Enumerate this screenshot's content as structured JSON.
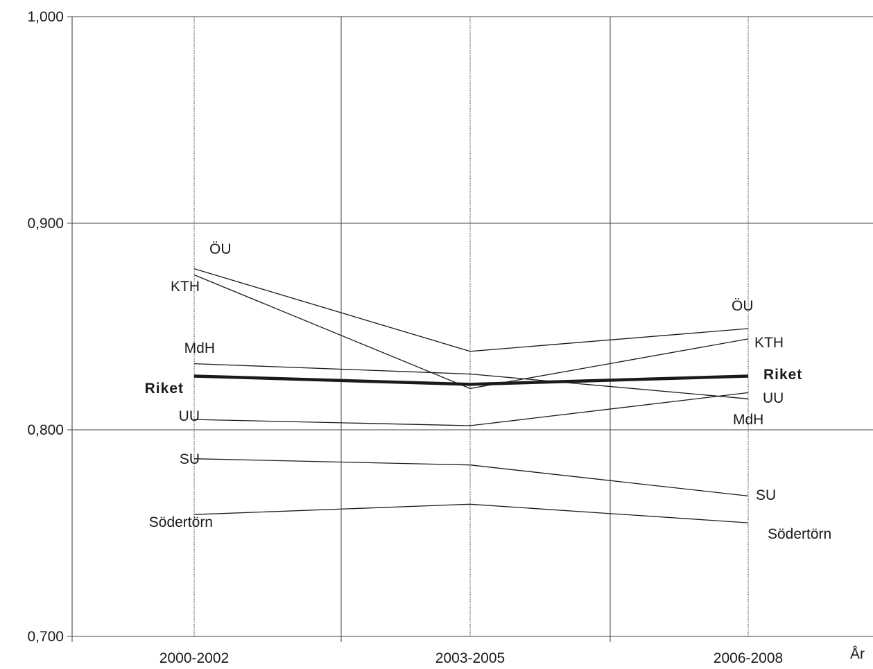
{
  "chart_data": {
    "type": "line",
    "categories": [
      "2000-2002",
      "2003-2005",
      "2006-2008"
    ],
    "xlabel": "År",
    "ylabel": "",
    "ylim": [
      0.7,
      1.0
    ],
    "yticks": [
      "1,000",
      "0,900",
      "0,800",
      "0,700"
    ],
    "ytick_values": [
      1.0,
      0.9,
      0.8,
      0.7
    ],
    "grid": true,
    "series": [
      {
        "name": "ÖU",
        "values": [
          0.878,
          0.838,
          0.849
        ],
        "bold": false,
        "start_label": "ÖU",
        "end_label": "ÖU"
      },
      {
        "name": "KTH",
        "values": [
          0.875,
          0.82,
          0.844
        ],
        "bold": false,
        "start_label": "KTH",
        "end_label": "KTH"
      },
      {
        "name": "MdH",
        "values": [
          0.832,
          0.827,
          0.815
        ],
        "bold": false,
        "start_label": "MdH",
        "end_label": "MdH"
      },
      {
        "name": "Riket",
        "values": [
          0.826,
          0.822,
          0.826
        ],
        "bold": true,
        "start_label": "Riket",
        "end_label": "Riket"
      },
      {
        "name": "UU",
        "values": [
          0.805,
          0.802,
          0.818
        ],
        "bold": false,
        "start_label": "UU",
        "end_label": "UU"
      },
      {
        "name": "SU",
        "values": [
          0.786,
          0.783,
          0.768
        ],
        "bold": false,
        "start_label": "SU",
        "end_label": "SU"
      },
      {
        "name": "Södertörn",
        "values": [
          0.759,
          0.764,
          0.755
        ],
        "bold": false,
        "start_label": "Södertörn",
        "end_label": "Södertörn"
      }
    ]
  }
}
